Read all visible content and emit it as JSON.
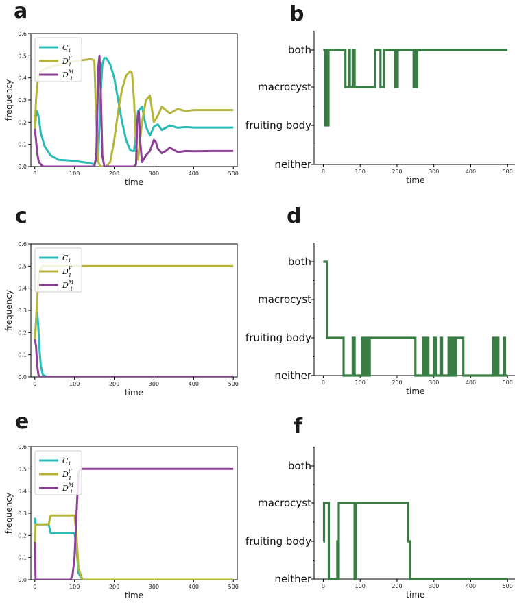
{
  "figure": {
    "panel_letters": [
      "a",
      "b",
      "c",
      "d",
      "e",
      "f"
    ]
  },
  "colors": {
    "C1": "#2bbbb7",
    "D1F": "#b5b53a",
    "D1M": "#8e3f98",
    "state": "#3a7d44",
    "axis": "#000000"
  },
  "chart_data": [
    {
      "panel": "a",
      "type": "line",
      "xlabel": "time",
      "ylabel": "frequency",
      "xlim": [
        -10,
        510
      ],
      "ylim": [
        0,
        0.6
      ],
      "xticks": [
        0,
        100,
        200,
        300,
        400,
        500
      ],
      "yticks": [
        0.0,
        0.1,
        0.2,
        0.3,
        0.4,
        0.5,
        0.6
      ],
      "legend": {
        "placement": "top-left",
        "entries": [
          {
            "base": "C",
            "sub": "1",
            "sup": ""
          },
          {
            "base": "D",
            "sub": "1",
            "sup": "F"
          },
          {
            "base": "D",
            "sub": "1",
            "sup": "M"
          }
        ]
      },
      "series": [
        {
          "key": "C1",
          "x": [
            0,
            3,
            6,
            10,
            15,
            25,
            40,
            60,
            80,
            100,
            120,
            140,
            150,
            160,
            165,
            170,
            175,
            180,
            190,
            200,
            210,
            220,
            230,
            240,
            245,
            250,
            255,
            260,
            270,
            280,
            290,
            300,
            310,
            320,
            340,
            360,
            380,
            400,
            450,
            500
          ],
          "y": [
            0.17,
            0.23,
            0.25,
            0.22,
            0.15,
            0.09,
            0.05,
            0.03,
            0.028,
            0.025,
            0.02,
            0.015,
            0.01,
            0.05,
            0.3,
            0.46,
            0.49,
            0.49,
            0.46,
            0.4,
            0.3,
            0.2,
            0.12,
            0.075,
            0.07,
            0.07,
            0.15,
            0.25,
            0.27,
            0.18,
            0.14,
            0.18,
            0.19,
            0.165,
            0.185,
            0.175,
            0.178,
            0.176,
            0.176,
            0.176
          ]
        },
        {
          "key": "D1F",
          "x": [
            0,
            3,
            6,
            10,
            15,
            25,
            40,
            60,
            80,
            100,
            120,
            140,
            150,
            155,
            160,
            165,
            170,
            180,
            190,
            200,
            210,
            220,
            230,
            240,
            245,
            250,
            255,
            260,
            270,
            280,
            290,
            300,
            310,
            320,
            340,
            360,
            380,
            400,
            450,
            500
          ],
          "y": [
            0.17,
            0.3,
            0.37,
            0.41,
            0.43,
            0.44,
            0.45,
            0.46,
            0.47,
            0.475,
            0.48,
            0.485,
            0.48,
            0.2,
            0.02,
            0.0,
            0.0,
            0.0,
            0.02,
            0.12,
            0.25,
            0.35,
            0.41,
            0.43,
            0.42,
            0.3,
            0.1,
            0.03,
            0.2,
            0.3,
            0.32,
            0.2,
            0.23,
            0.27,
            0.24,
            0.26,
            0.25,
            0.255,
            0.255,
            0.255
          ]
        },
        {
          "key": "D1M",
          "x": [
            0,
            3,
            6,
            10,
            20,
            100,
            150,
            155,
            160,
            163,
            166,
            170,
            175,
            180,
            200,
            240,
            250,
            255,
            258,
            262,
            266,
            270,
            280,
            290,
            300,
            305,
            310,
            320,
            330,
            340,
            360,
            380,
            400,
            450,
            500
          ],
          "y": [
            0.17,
            0.12,
            0.06,
            0.02,
            0.0,
            0.0,
            0.0,
            0.05,
            0.45,
            0.5,
            0.35,
            0.05,
            0.0,
            0.0,
            0.0,
            0.0,
            0.0,
            0.01,
            0.2,
            0.25,
            0.1,
            0.02,
            0.05,
            0.07,
            0.12,
            0.11,
            0.08,
            0.06,
            0.07,
            0.085,
            0.065,
            0.07,
            0.069,
            0.07,
            0.07
          ]
        }
      ]
    },
    {
      "panel": "b",
      "type": "line",
      "xlabel": "time",
      "xlim": [
        -25,
        520
      ],
      "xticks": [
        0,
        100,
        200,
        300,
        400,
        500
      ],
      "ycategories": [
        "neither",
        "fruiting body",
        "macrocyst",
        "both"
      ],
      "series": [
        {
          "key": "state",
          "x": [
            0,
            5,
            5,
            10,
            10,
            12,
            12,
            14,
            14,
            20,
            20,
            60,
            60,
            70,
            70,
            72,
            72,
            80,
            80,
            85,
            85,
            140,
            140,
            155,
            155,
            165,
            165,
            195,
            195,
            198,
            198,
            200,
            200,
            202,
            202,
            205,
            205,
            245,
            245,
            250,
            250,
            253,
            253,
            255,
            255,
            258,
            258,
            500
          ],
          "y": [
            3,
            3,
            1,
            1,
            3,
            3,
            1,
            1,
            3,
            3,
            3,
            3,
            2,
            2,
            3,
            3,
            2,
            2,
            3,
            3,
            2,
            2,
            3,
            3,
            2,
            2,
            3,
            3,
            2,
            2,
            3,
            3,
            2,
            2,
            3,
            3,
            3,
            3,
            2,
            2,
            3,
            3,
            2,
            2,
            3,
            3,
            3,
            3
          ]
        }
      ]
    },
    {
      "panel": "c",
      "type": "line",
      "xlabel": "time",
      "ylabel": "frequency",
      "xlim": [
        -10,
        510
      ],
      "ylim": [
        0,
        0.6
      ],
      "xticks": [
        0,
        100,
        200,
        300,
        400,
        500
      ],
      "yticks": [
        0.0,
        0.1,
        0.2,
        0.3,
        0.4,
        0.5,
        0.6
      ],
      "legend": {
        "placement": "top-left",
        "entries": [
          {
            "base": "C",
            "sub": "1",
            "sup": ""
          },
          {
            "base": "D",
            "sub": "1",
            "sup": "F"
          },
          {
            "base": "D",
            "sub": "1",
            "sup": "M"
          }
        ]
      },
      "series": [
        {
          "key": "C1",
          "x": [
            0,
            3,
            6,
            9,
            12,
            15,
            20,
            30,
            500
          ],
          "y": [
            0.17,
            0.25,
            0.29,
            0.22,
            0.12,
            0.05,
            0.01,
            0.0,
            0.0
          ]
        },
        {
          "key": "D1F",
          "x": [
            0,
            3,
            6,
            10,
            15,
            20,
            30,
            500
          ],
          "y": [
            0.17,
            0.25,
            0.36,
            0.45,
            0.49,
            0.5,
            0.5,
            0.5
          ]
        },
        {
          "key": "D1M",
          "x": [
            0,
            3,
            6,
            9,
            12,
            500
          ],
          "y": [
            0.17,
            0.14,
            0.05,
            0.01,
            0.0,
            0.0
          ]
        }
      ]
    },
    {
      "panel": "d",
      "type": "line",
      "xlabel": "time",
      "xlim": [
        -25,
        520
      ],
      "xticks": [
        0,
        100,
        200,
        300,
        400,
        500
      ],
      "ycategories": [
        "neither",
        "fruiting body",
        "macrocyst",
        "both"
      ],
      "series": [
        {
          "key": "state",
          "x": [
            0,
            5,
            5,
            10,
            10,
            55,
            55,
            80,
            80,
            85,
            85,
            105,
            105,
            110,
            110,
            113,
            113,
            116,
            116,
            120,
            120,
            123,
            123,
            126,
            126,
            250,
            250,
            270,
            270,
            275,
            275,
            280,
            280,
            285,
            285,
            300,
            300,
            305,
            305,
            318,
            318,
            322,
            322,
            340,
            340,
            345,
            345,
            350,
            350,
            355,
            355,
            360,
            360,
            380,
            380,
            460,
            460,
            465,
            465,
            470,
            470,
            475,
            475,
            490,
            490,
            493,
            493,
            500
          ],
          "y": [
            3,
            3,
            3,
            3,
            1,
            1,
            0,
            0,
            1,
            1,
            0,
            0,
            1,
            1,
            0,
            0,
            1,
            1,
            0,
            0,
            1,
            1,
            0,
            0,
            1,
            1,
            0,
            0,
            1,
            1,
            0,
            0,
            1,
            1,
            0,
            0,
            1,
            1,
            0,
            0,
            1,
            1,
            0,
            0,
            1,
            1,
            0,
            0,
            1,
            1,
            0,
            0,
            1,
            1,
            0,
            0,
            1,
            1,
            0,
            0,
            1,
            1,
            0,
            0,
            1,
            1,
            0,
            0
          ]
        }
      ]
    },
    {
      "panel": "e",
      "type": "line",
      "xlabel": "time",
      "ylabel": "frequency",
      "xlim": [
        -10,
        510
      ],
      "ylim": [
        0,
        0.6
      ],
      "xticks": [
        0,
        100,
        200,
        300,
        400,
        500
      ],
      "yticks": [
        0.0,
        0.1,
        0.2,
        0.3,
        0.4,
        0.5,
        0.6
      ],
      "legend": {
        "placement": "top-left",
        "entries": [
          {
            "base": "C",
            "sub": "1",
            "sup": ""
          },
          {
            "base": "D",
            "sub": "1",
            "sup": "F"
          },
          {
            "base": "D",
            "sub": "1",
            "sup": "M"
          }
        ]
      },
      "series": [
        {
          "key": "C1",
          "x": [
            0,
            2,
            4,
            35,
            40,
            100,
            105,
            110,
            120,
            500
          ],
          "y": [
            0.28,
            0.25,
            0.25,
            0.25,
            0.21,
            0.21,
            0.15,
            0.03,
            0.0,
            0.0
          ]
        },
        {
          "key": "D1F",
          "x": [
            0,
            2,
            4,
            35,
            40,
            100,
            105,
            110,
            120,
            500
          ],
          "y": [
            0.17,
            0.25,
            0.25,
            0.25,
            0.29,
            0.29,
            0.2,
            0.05,
            0.0,
            0.0
          ]
        },
        {
          "key": "D1M",
          "x": [
            0,
            2,
            4,
            90,
            95,
            100,
            105,
            110,
            115,
            500
          ],
          "y": [
            0.17,
            0.0,
            0.0,
            0.0,
            0.02,
            0.1,
            0.3,
            0.48,
            0.5,
            0.5
          ]
        }
      ]
    },
    {
      "panel": "f",
      "type": "line",
      "xlabel": "time",
      "xlim": [
        -25,
        520
      ],
      "xticks": [
        0,
        100,
        200,
        300,
        400,
        500
      ],
      "ycategories": [
        "neither",
        "fruiting body",
        "macrocyst",
        "both"
      ],
      "series": [
        {
          "key": "state",
          "x": [
            0,
            2,
            2,
            15,
            15,
            18,
            18,
            38,
            38,
            40,
            40,
            42,
            42,
            85,
            85,
            88,
            88,
            92,
            92,
            230,
            230,
            235,
            235,
            238,
            238,
            500
          ],
          "y": [
            1,
            1,
            2,
            2,
            0,
            0,
            0,
            0,
            1,
            1,
            0,
            0,
            2,
            2,
            0,
            0,
            2,
            2,
            2,
            2,
            1,
            1,
            0,
            0,
            0,
            0
          ]
        }
      ]
    }
  ]
}
